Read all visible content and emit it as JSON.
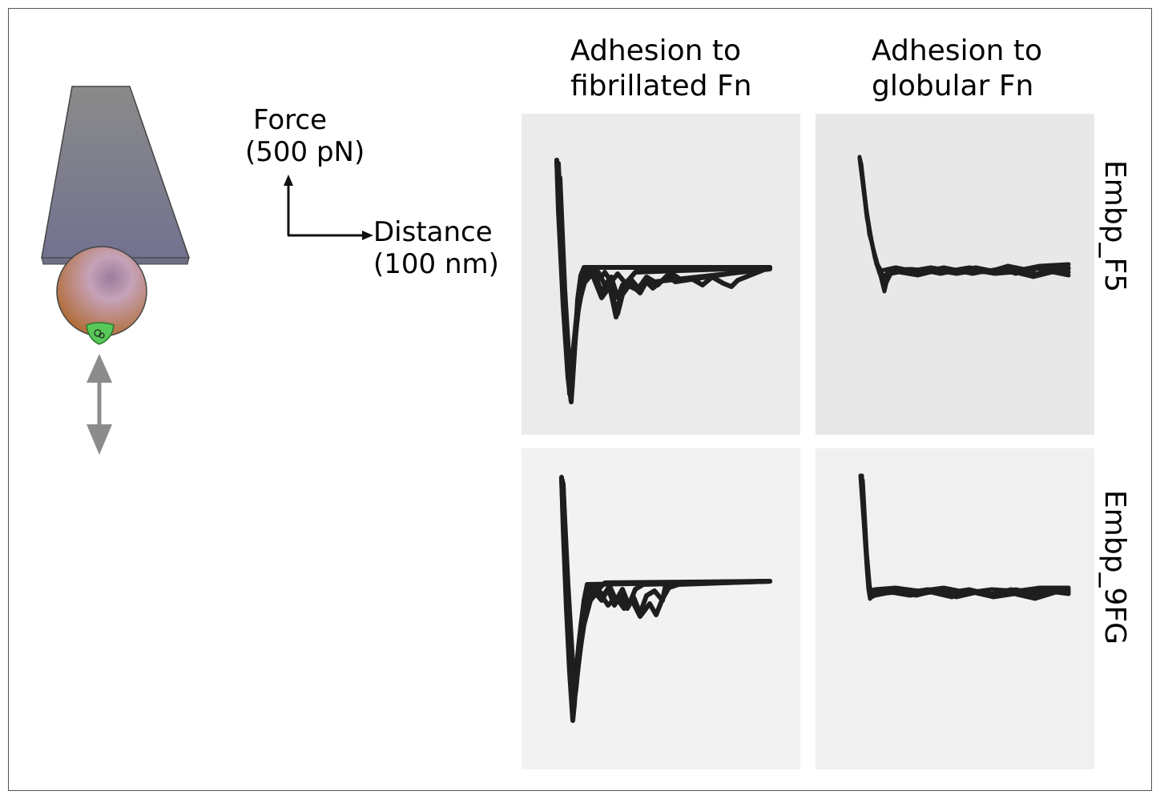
{
  "columns": [
    {
      "line1": "Adhesion to",
      "line2": "fibrillated Fn"
    },
    {
      "line1": "Adhesion to",
      "line2": "globular Fn"
    }
  ],
  "rows": [
    {
      "label": "Embp_F5"
    },
    {
      "label": "Embp_9FG"
    }
  ],
  "scale_bar": {
    "force_label": "Force",
    "force_value": "(500 pN)",
    "distance_label": "Distance",
    "distance_value": "(100 nm)"
  },
  "colors": {
    "panel_top": "#ebebeb",
    "panel_bottom": "#f2f2f2",
    "curve": "#1e1e1e",
    "cantilever": "#7f7f8f",
    "bead": "#a87850",
    "cell": "#5ac85a",
    "arrow": "#8c8c8c"
  }
}
